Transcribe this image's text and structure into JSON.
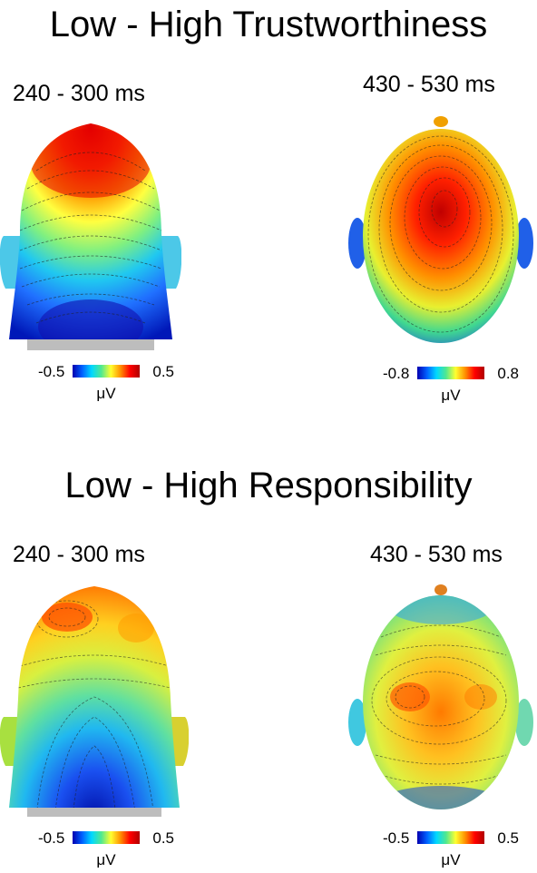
{
  "panels": [
    {
      "title": "Low - High Trustworthiness",
      "maps": [
        {
          "time": "240 - 300 ms",
          "view": "back-of-head",
          "scale_min": "-0.5",
          "scale_max": "0.5",
          "unit": "μV",
          "peak_level": 0.95,
          "trough_level": 0.1
        },
        {
          "time": "430 - 530 ms",
          "view": "top-of-head",
          "scale_min": "-0.8",
          "scale_max": "0.8",
          "unit": "μV",
          "peak_level": 0.95,
          "trough_level": 0.3
        }
      ]
    },
    {
      "title": "Low - High Responsibility",
      "maps": [
        {
          "time": "240 - 300 ms",
          "view": "back-of-head",
          "scale_min": "-0.5",
          "scale_max": "0.5",
          "unit": "μV",
          "peak_level": 0.8,
          "trough_level": 0.08
        },
        {
          "time": "430 - 530 ms",
          "view": "top-of-head",
          "scale_min": "-0.5",
          "scale_max": "0.5",
          "unit": "μV",
          "peak_level": 0.82,
          "trough_level": 0.35
        }
      ]
    }
  ],
  "colormap": [
    "#0000b0",
    "#0060ff",
    "#00d8ff",
    "#50e890",
    "#ffff30",
    "#ff9000",
    "#ff0000",
    "#b00000"
  ]
}
